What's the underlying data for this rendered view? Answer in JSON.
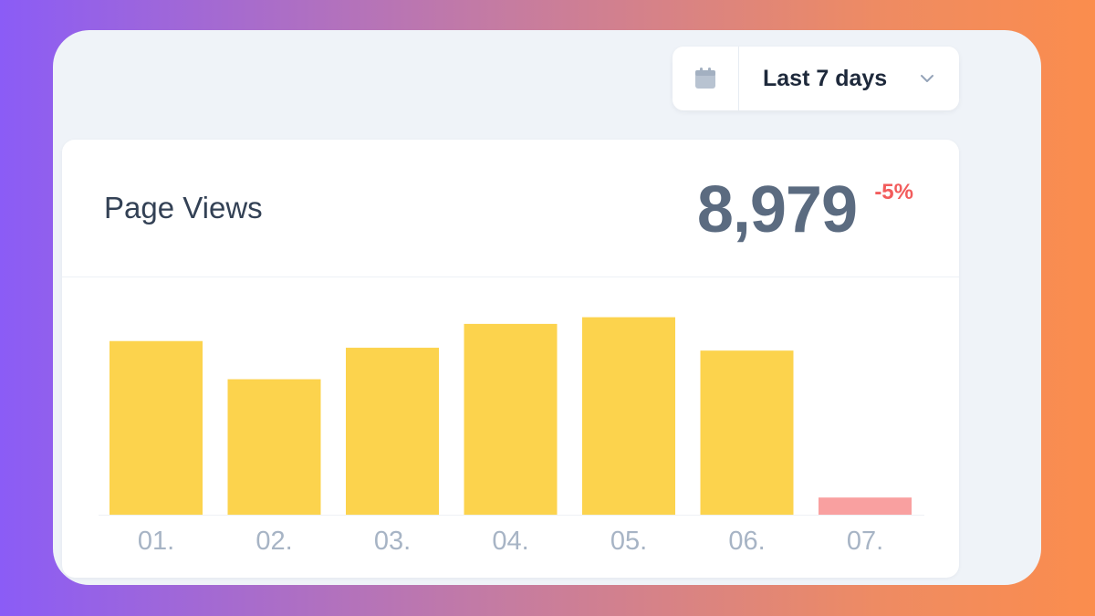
{
  "date_filter": {
    "icon": "calendar-icon",
    "label": "Last 7 days",
    "dropdown_icon": "chevron-down-icon"
  },
  "card": {
    "title": "Page Views",
    "value": "8,979",
    "delta": "-5%"
  },
  "colors": {
    "bar": "#fcd34d",
    "bar_last": "#f9a0a0",
    "tick_label": "#a7b4c5",
    "delta": "#f25c5c"
  },
  "chart_data": {
    "type": "bar",
    "categories": [
      "01.",
      "02.",
      "03.",
      "04.",
      "05.",
      "06.",
      "07."
    ],
    "values": [
      182,
      142,
      175,
      200,
      207,
      172,
      18
    ],
    "ylim": [
      0,
      220
    ],
    "grid": false,
    "title": "",
    "xlabel": "",
    "ylabel": ""
  }
}
